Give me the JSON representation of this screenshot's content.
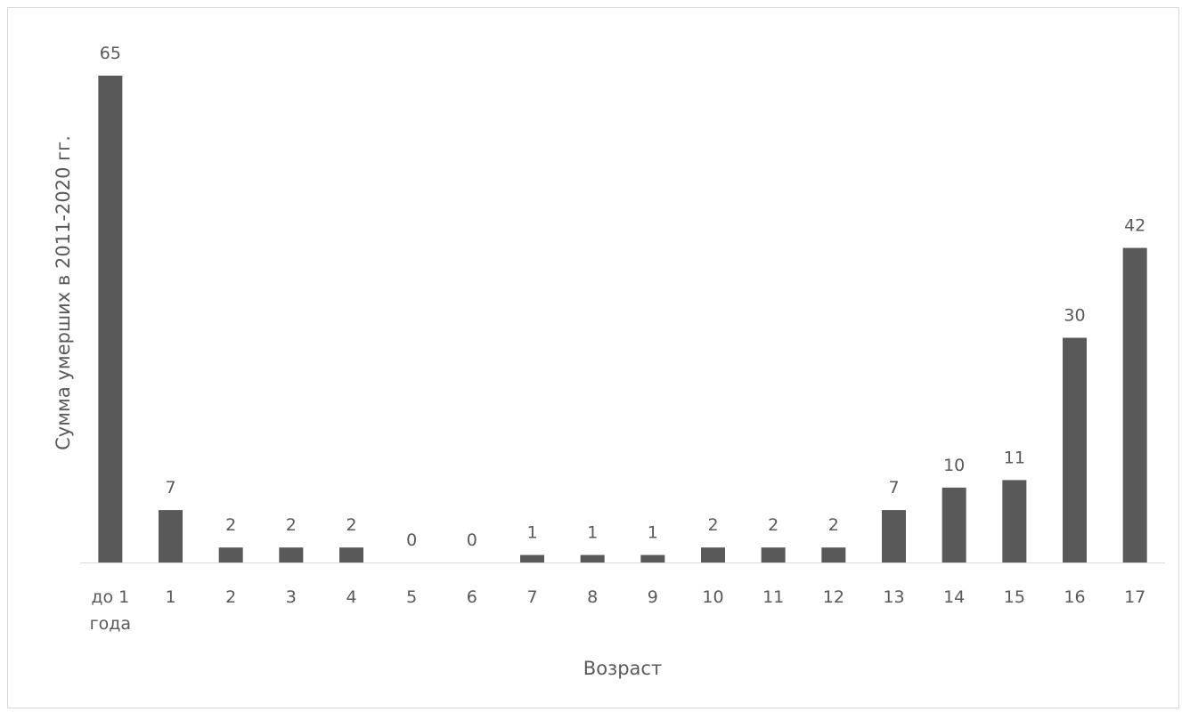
{
  "chart_data": {
    "type": "bar",
    "categories": [
      [
        "до 1",
        "года"
      ],
      [
        "1"
      ],
      [
        "2"
      ],
      [
        "3"
      ],
      [
        "4"
      ],
      [
        "5"
      ],
      [
        "6"
      ],
      [
        "7"
      ],
      [
        "8"
      ],
      [
        "9"
      ],
      [
        "10"
      ],
      [
        "11"
      ],
      [
        "12"
      ],
      [
        "13"
      ],
      [
        "14"
      ],
      [
        "15"
      ],
      [
        "16"
      ],
      [
        "17"
      ]
    ],
    "values": [
      65,
      7,
      2,
      2,
      2,
      0,
      0,
      1,
      1,
      1,
      2,
      2,
      2,
      7,
      10,
      11,
      30,
      42
    ],
    "xlabel": "Возраст",
    "ylabel": "Сумма умерших в 2011-2020 гг.",
    "ylim": [
      0,
      65
    ],
    "grid": false,
    "legend": "none",
    "bar_color": "#595959",
    "axis_color": "#d9d9d9",
    "text_color": "#595959"
  }
}
